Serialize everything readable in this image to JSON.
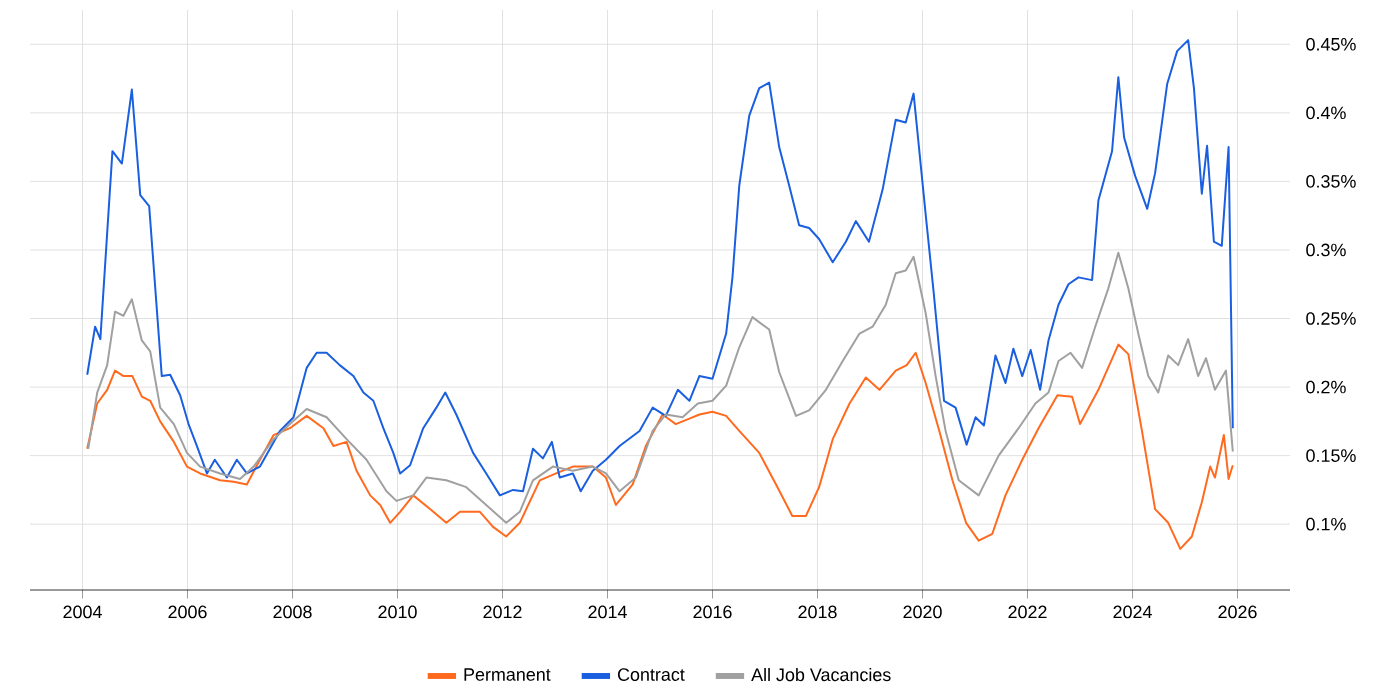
{
  "chart_data": {
    "type": "line",
    "xlim": [
      2003,
      2027
    ],
    "ylim": [
      0.052,
      0.475
    ],
    "xticks": [
      2004,
      2006,
      2008,
      2010,
      2012,
      2014,
      2016,
      2018,
      2020,
      2022,
      2024,
      2026
    ],
    "yticks": [
      {
        "value": 0.1,
        "label": "0.1%"
      },
      {
        "value": 0.15,
        "label": "0.15%"
      },
      {
        "value": 0.2,
        "label": "0.2%"
      },
      {
        "value": 0.25,
        "label": "0.25%"
      },
      {
        "value": 0.3,
        "label": "0.3%"
      },
      {
        "value": 0.35,
        "label": "0.35%"
      },
      {
        "value": 0.4,
        "label": "0.4%"
      },
      {
        "value": 0.45,
        "label": "0.45%"
      }
    ],
    "grid": true,
    "legend": "bottom",
    "series": [
      {
        "name": "Permanent",
        "color": "#ff6a1f",
        "x": [
          2004.09,
          2004.28,
          2004.47,
          2004.62,
          2004.78,
          2004.95,
          2005.13,
          2005.29,
          2005.48,
          2005.74,
          2005.99,
          2006.24,
          2006.62,
          2006.88,
          2007.13,
          2007.38,
          2007.64,
          2007.95,
          2008.27,
          2008.59,
          2008.78,
          2009.03,
          2009.22,
          2009.48,
          2009.67,
          2009.86,
          2010.05,
          2010.3,
          2010.62,
          2010.93,
          2011.19,
          2011.57,
          2011.82,
          2012.07,
          2012.33,
          2012.71,
          2013.02,
          2013.34,
          2013.72,
          2013.97,
          2014.16,
          2014.48,
          2014.73,
          2015.05,
          2015.3,
          2015.56,
          2015.75,
          2016.0,
          2016.26,
          2016.51,
          2016.89,
          2017.21,
          2017.52,
          2017.78,
          2018.03,
          2018.29,
          2018.61,
          2018.92,
          2019.18,
          2019.49,
          2019.7,
          2019.87,
          2020.06,
          2020.32,
          2020.57,
          2020.83,
          2021.07,
          2021.33,
          2021.58,
          2021.9,
          2022.21,
          2022.57,
          2022.85,
          2023.0,
          2023.35,
          2023.73,
          2023.92,
          2024.18,
          2024.43,
          2024.68,
          2024.91,
          2025.13,
          2025.32,
          2025.48,
          2025.57,
          2025.74,
          2025.83,
          2025.91
        ],
        "values": [
          0.155,
          0.188,
          0.198,
          0.212,
          0.208,
          0.208,
          0.193,
          0.19,
          0.175,
          0.16,
          0.142,
          0.137,
          0.132,
          0.131,
          0.129,
          0.147,
          0.165,
          0.17,
          0.179,
          0.17,
          0.157,
          0.16,
          0.139,
          0.121,
          0.114,
          0.101,
          0.109,
          0.121,
          0.111,
          0.101,
          0.109,
          0.109,
          0.098,
          0.091,
          0.101,
          0.132,
          0.137,
          0.142,
          0.142,
          0.134,
          0.114,
          0.129,
          0.157,
          0.18,
          0.173,
          0.177,
          0.18,
          0.182,
          0.179,
          0.168,
          0.152,
          0.129,
          0.106,
          0.106,
          0.127,
          0.162,
          0.188,
          0.207,
          0.198,
          0.212,
          0.216,
          0.225,
          0.203,
          0.168,
          0.132,
          0.101,
          0.088,
          0.093,
          0.121,
          0.147,
          0.17,
          0.194,
          0.193,
          0.173,
          0.198,
          0.231,
          0.224,
          0.168,
          0.111,
          0.101,
          0.082,
          0.091,
          0.116,
          0.142,
          0.134,
          0.165,
          0.133,
          0.143
        ]
      },
      {
        "name": "Contract",
        "color": "#1a5fe0",
        "x": [
          2004.09,
          2004.24,
          2004.34,
          2004.57,
          2004.75,
          2004.94,
          2005.1,
          2005.27,
          2005.51,
          2005.67,
          2005.86,
          2006.02,
          2006.18,
          2006.37,
          2006.52,
          2006.75,
          2006.94,
          2007.13,
          2007.38,
          2007.76,
          2008.02,
          2008.27,
          2008.46,
          2008.65,
          2008.9,
          2009.16,
          2009.35,
          2009.54,
          2009.73,
          2009.92,
          2010.05,
          2010.24,
          2010.49,
          2010.74,
          2010.91,
          2011.12,
          2011.44,
          2011.69,
          2011.95,
          2012.2,
          2012.39,
          2012.58,
          2012.77,
          2012.94,
          2013.09,
          2013.34,
          2013.49,
          2013.72,
          2013.97,
          2014.23,
          2014.61,
          2014.86,
          2015.11,
          2015.34,
          2015.56,
          2015.75,
          2016.0,
          2016.26,
          2016.38,
          2016.51,
          2016.7,
          2016.89,
          2017.08,
          2017.27,
          2017.46,
          2017.65,
          2017.84,
          2018.03,
          2018.29,
          2018.54,
          2018.73,
          2018.98,
          2019.24,
          2019.49,
          2019.68,
          2019.83,
          2020.06,
          2020.21,
          2020.41,
          2020.63,
          2020.84,
          2021.01,
          2021.17,
          2021.39,
          2021.58,
          2021.73,
          2021.9,
          2022.06,
          2022.24,
          2022.4,
          2022.59,
          2022.78,
          2022.97,
          2023.23,
          2023.35,
          2023.61,
          2023.73,
          2023.84,
          2024.05,
          2024.28,
          2024.43,
          2024.66,
          2024.85,
          2025.06,
          2025.17,
          2025.32,
          2025.42,
          2025.55,
          2025.7,
          2025.83,
          2025.91
        ],
        "values": [
          0.209,
          0.244,
          0.235,
          0.372,
          0.363,
          0.417,
          0.34,
          0.332,
          0.208,
          0.209,
          0.194,
          0.173,
          0.157,
          0.137,
          0.147,
          0.134,
          0.147,
          0.137,
          0.142,
          0.168,
          0.178,
          0.214,
          0.225,
          0.225,
          0.216,
          0.208,
          0.196,
          0.19,
          0.17,
          0.152,
          0.137,
          0.143,
          0.17,
          0.185,
          0.196,
          0.18,
          0.152,
          0.137,
          0.121,
          0.125,
          0.124,
          0.155,
          0.148,
          0.16,
          0.134,
          0.137,
          0.124,
          0.139,
          0.147,
          0.157,
          0.168,
          0.185,
          0.179,
          0.198,
          0.19,
          0.208,
          0.206,
          0.239,
          0.28,
          0.347,
          0.398,
          0.418,
          0.422,
          0.375,
          0.347,
          0.318,
          0.316,
          0.308,
          0.291,
          0.306,
          0.321,
          0.306,
          0.344,
          0.395,
          0.393,
          0.414,
          0.326,
          0.27,
          0.19,
          0.185,
          0.158,
          0.178,
          0.172,
          0.223,
          0.203,
          0.228,
          0.208,
          0.227,
          0.198,
          0.234,
          0.26,
          0.275,
          0.28,
          0.278,
          0.336,
          0.372,
          0.426,
          0.382,
          0.354,
          0.33,
          0.356,
          0.421,
          0.445,
          0.453,
          0.418,
          0.341,
          0.376,
          0.306,
          0.303,
          0.375,
          0.17
        ]
      },
      {
        "name": "All Job Vacancies",
        "color": "#a0a0a0",
        "x": [
          2004.11,
          2004.28,
          2004.47,
          2004.62,
          2004.78,
          2004.94,
          2005.13,
          2005.29,
          2005.48,
          2005.74,
          2005.99,
          2006.24,
          2006.62,
          2007.0,
          2007.26,
          2007.64,
          2007.95,
          2008.27,
          2008.65,
          2009.03,
          2009.41,
          2009.79,
          2009.98,
          2010.3,
          2010.55,
          2010.93,
          2011.31,
          2011.69,
          2012.07,
          2012.33,
          2012.58,
          2012.96,
          2013.34,
          2013.72,
          2013.97,
          2014.23,
          2014.54,
          2014.86,
          2015.11,
          2015.43,
          2015.72,
          2016.0,
          2016.26,
          2016.51,
          2016.76,
          2017.08,
          2017.27,
          2017.59,
          2017.84,
          2018.16,
          2018.48,
          2018.8,
          2019.05,
          2019.3,
          2019.49,
          2019.68,
          2019.83,
          2020.06,
          2020.25,
          2020.44,
          2020.69,
          2021.07,
          2021.45,
          2021.83,
          2022.15,
          2022.4,
          2022.59,
          2022.82,
          2023.04,
          2023.29,
          2023.54,
          2023.73,
          2023.92,
          2024.11,
          2024.3,
          2024.49,
          2024.68,
          2024.87,
          2025.06,
          2025.25,
          2025.4,
          2025.57,
          2025.78,
          2025.91
        ],
        "values": [
          0.155,
          0.196,
          0.216,
          0.255,
          0.252,
          0.264,
          0.234,
          0.226,
          0.185,
          0.173,
          0.152,
          0.142,
          0.137,
          0.133,
          0.142,
          0.162,
          0.173,
          0.184,
          0.178,
          0.162,
          0.147,
          0.124,
          0.117,
          0.121,
          0.134,
          0.132,
          0.127,
          0.114,
          0.101,
          0.109,
          0.132,
          0.142,
          0.139,
          0.142,
          0.137,
          0.124,
          0.134,
          0.168,
          0.18,
          0.178,
          0.188,
          0.19,
          0.201,
          0.229,
          0.251,
          0.242,
          0.211,
          0.179,
          0.183,
          0.198,
          0.219,
          0.239,
          0.244,
          0.26,
          0.283,
          0.285,
          0.295,
          0.254,
          0.208,
          0.168,
          0.132,
          0.121,
          0.15,
          0.17,
          0.188,
          0.196,
          0.219,
          0.225,
          0.214,
          0.244,
          0.272,
          0.298,
          0.272,
          0.239,
          0.208,
          0.196,
          0.223,
          0.216,
          0.235,
          0.208,
          0.221,
          0.198,
          0.212,
          0.153
        ]
      }
    ]
  }
}
